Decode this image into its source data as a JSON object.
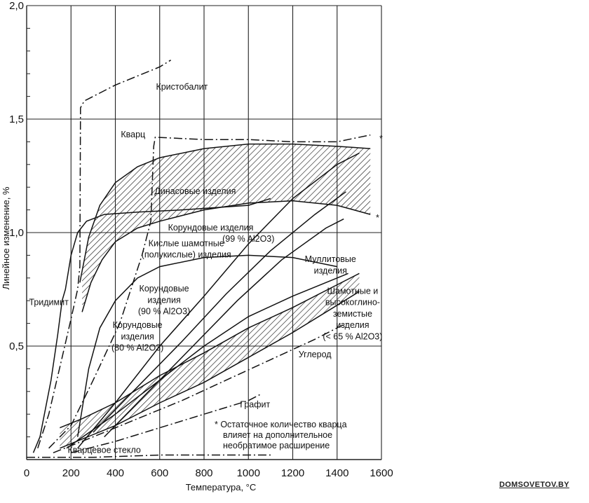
{
  "chart_data": {
    "type": "line",
    "title": "",
    "xlabel": "Температура, °C",
    "ylabel": "Линейное изменение, %",
    "xlim": [
      0,
      1600
    ],
    "ylim": [
      0,
      2.0
    ],
    "x_ticks": [
      "0",
      "200",
      "400",
      "600",
      "800",
      "1000",
      "1200",
      "1400",
      "1600"
    ],
    "y_ticks": [
      "0,5",
      "1,0",
      "1,5",
      "2,0"
    ],
    "grid": true,
    "legend": "none",
    "series": [
      {
        "name": "Кристобалит",
        "style": "dash-dot",
        "points": [
          [
            50,
            0.05
          ],
          [
            100,
            0.2
          ],
          [
            160,
            0.45
          ],
          [
            200,
            0.62
          ],
          [
            230,
            0.75
          ],
          [
            240,
            0.85
          ],
          [
            243,
            1.55
          ],
          [
            260,
            1.58
          ],
          [
            400,
            1.65
          ],
          [
            600,
            1.73
          ],
          [
            650,
            1.76
          ]
        ]
      },
      {
        "name": "Кварц",
        "style": "dash-dot",
        "points": [
          [
            100,
            0.05
          ],
          [
            200,
            0.15
          ],
          [
            300,
            0.35
          ],
          [
            420,
            0.6
          ],
          [
            520,
            0.9
          ],
          [
            560,
            1.05
          ],
          [
            573,
            1.38
          ],
          [
            580,
            1.42
          ],
          [
            800,
            1.41
          ],
          [
            1000,
            1.41
          ],
          [
            1200,
            1.4
          ],
          [
            1400,
            1.4
          ],
          [
            1550,
            1.43
          ]
        ]
      },
      {
        "name": "Тридимит",
        "style": "solid",
        "points": [
          [
            30,
            0.03
          ],
          [
            60,
            0.1
          ],
          [
            110,
            0.35
          ],
          [
            140,
            0.55
          ],
          [
            160,
            0.7
          ],
          [
            175,
            0.75
          ],
          [
            200,
            0.9
          ],
          [
            230,
            1.0
          ],
          [
            270,
            1.05
          ],
          [
            350,
            1.08
          ],
          [
            500,
            1.09
          ],
          [
            700,
            1.1
          ],
          [
            1000,
            1.12
          ],
          [
            1100,
            1.15
          ]
        ]
      },
      {
        "name": "Динасовые изделия (верх)",
        "style": "solid",
        "points": [
          [
            240,
            0.78
          ],
          [
            280,
            0.98
          ],
          [
            330,
            1.12
          ],
          [
            400,
            1.22
          ],
          [
            500,
            1.29
          ],
          [
            600,
            1.33
          ],
          [
            800,
            1.37
          ],
          [
            1000,
            1.39
          ],
          [
            1200,
            1.39
          ],
          [
            1400,
            1.38
          ],
          [
            1550,
            1.37
          ]
        ]
      },
      {
        "name": "Динасовые изделия (низ)",
        "style": "solid",
        "points": [
          [
            250,
            0.65
          ],
          [
            290,
            0.78
          ],
          [
            340,
            0.88
          ],
          [
            400,
            0.96
          ],
          [
            500,
            1.02
          ],
          [
            600,
            1.05
          ],
          [
            800,
            1.1
          ],
          [
            1000,
            1.13
          ],
          [
            1200,
            1.14
          ],
          [
            1400,
            1.12
          ],
          [
            1550,
            1.08
          ]
        ]
      },
      {
        "name": "Корундовые изделия (99 % Al2O3)",
        "style": "solid",
        "points": [
          [
            230,
            0.05
          ],
          [
            400,
            0.25
          ],
          [
            600,
            0.5
          ],
          [
            800,
            0.72
          ],
          [
            1000,
            0.95
          ],
          [
            1200,
            1.15
          ],
          [
            1400,
            1.3
          ],
          [
            1500,
            1.35
          ]
        ]
      },
      {
        "name": "Кислые шамотные (полукислые) изделия",
        "style": "solid",
        "points": [
          [
            230,
            0.1
          ],
          [
            280,
            0.4
          ],
          [
            330,
            0.58
          ],
          [
            400,
            0.7
          ],
          [
            500,
            0.8
          ],
          [
            600,
            0.85
          ],
          [
            800,
            0.89
          ],
          [
            1000,
            0.9
          ],
          [
            1200,
            0.89
          ],
          [
            1400,
            0.85
          ]
        ]
      },
      {
        "name": "Корундовые изделия (90 % Al2O3)",
        "style": "solid",
        "points": [
          [
            300,
            0.12
          ],
          [
            500,
            0.32
          ],
          [
            700,
            0.52
          ],
          [
            900,
            0.73
          ],
          [
            1100,
            0.92
          ],
          [
            1300,
            1.08
          ],
          [
            1440,
            1.18
          ]
        ]
      },
      {
        "name": "Корундовые изделия (80 % Al2O3)",
        "style": "solid",
        "points": [
          [
            350,
            0.1
          ],
          [
            550,
            0.3
          ],
          [
            750,
            0.5
          ],
          [
            950,
            0.7
          ],
          [
            1150,
            0.88
          ],
          [
            1350,
            1.02
          ],
          [
            1430,
            1.06
          ]
        ]
      },
      {
        "name": "Шамотные и высокоглиноземистые изделия (< 65 % Al2O3) (верх)",
        "style": "solid",
        "points": [
          [
            150,
            0.14
          ],
          [
            250,
            0.18
          ],
          [
            400,
            0.25
          ],
          [
            600,
            0.37
          ],
          [
            800,
            0.47
          ],
          [
            1000,
            0.58
          ],
          [
            1200,
            0.67
          ],
          [
            1400,
            0.77
          ],
          [
            1500,
            0.82
          ]
        ]
      },
      {
        "name": "Шамотные и высокоглиноземистые изделия (< 65 % Al2O3) (низ)",
        "style": "solid",
        "points": [
          [
            150,
            0.05
          ],
          [
            250,
            0.09
          ],
          [
            400,
            0.15
          ],
          [
            600,
            0.25
          ],
          [
            800,
            0.34
          ],
          [
            1000,
            0.45
          ],
          [
            1200,
            0.56
          ],
          [
            1400,
            0.68
          ],
          [
            1500,
            0.74
          ]
        ]
      },
      {
        "name": "Муллитовые изделия",
        "style": "solid",
        "points": [
          [
            180,
            0.05
          ],
          [
            400,
            0.2
          ],
          [
            600,
            0.35
          ],
          [
            800,
            0.5
          ],
          [
            1000,
            0.63
          ],
          [
            1200,
            0.72
          ],
          [
            1400,
            0.8
          ],
          [
            1450,
            0.82
          ]
        ]
      },
      {
        "name": "Углерод",
        "style": "dash-dot",
        "points": [
          [
            120,
            0.03
          ],
          [
            300,
            0.1
          ],
          [
            500,
            0.18
          ],
          [
            700,
            0.26
          ],
          [
            900,
            0.35
          ],
          [
            1100,
            0.44
          ],
          [
            1300,
            0.53
          ],
          [
            1440,
            0.6
          ]
        ]
      },
      {
        "name": "Графит",
        "style": "dash-dot",
        "points": [
          [
            200,
            0.03
          ],
          [
            400,
            0.08
          ],
          [
            600,
            0.14
          ],
          [
            800,
            0.2
          ],
          [
            1000,
            0.26
          ],
          [
            1060,
            0.29
          ]
        ]
      },
      {
        "name": "Кварцевое стекло",
        "style": "dash-dot",
        "points": [
          [
            0,
            0.01
          ],
          [
            300,
            0.01
          ],
          [
            600,
            0.02
          ],
          [
            900,
            0.02
          ],
          [
            1100,
            0.02
          ]
        ]
      }
    ],
    "annotations": [
      {
        "text": "Кристобалит",
        "x": 700,
        "y": 1.63
      },
      {
        "text": "Кварц",
        "x": 480,
        "y": 1.42
      },
      {
        "text": "Динасовые изделия",
        "x": 760,
        "y": 1.17
      },
      {
        "text": "Корундовые изделия",
        "x": 830,
        "y": 1.01
      },
      {
        "text": "(99 % Al2O3)",
        "x": 1000,
        "y": 0.96
      },
      {
        "text": "Кислые шамотные",
        "x": 720,
        "y": 0.94
      },
      {
        "text": "(полукислые) изделия",
        "x": 720,
        "y": 0.89
      },
      {
        "text": "Тридимит",
        "x": 100,
        "y": 0.68
      },
      {
        "text": "Корундовые",
        "x": 620,
        "y": 0.74
      },
      {
        "text": "изделия",
        "x": 620,
        "y": 0.69
      },
      {
        "text": "(90 % Al2O3)",
        "x": 620,
        "y": 0.64
      },
      {
        "text": "Корундовые",
        "x": 500,
        "y": 0.58
      },
      {
        "text": "изделия",
        "x": 500,
        "y": 0.53
      },
      {
        "text": "(80 % Al2O3)",
        "x": 500,
        "y": 0.48
      },
      {
        "text": "Муллитовые",
        "x": 1370,
        "y": 0.87
      },
      {
        "text": "изделия",
        "x": 1370,
        "y": 0.82
      },
      {
        "text": "Шамотные и",
        "x": 1470,
        "y": 0.73
      },
      {
        "text": "высокоглино-",
        "x": 1470,
        "y": 0.68
      },
      {
        "text": "земистые",
        "x": 1470,
        "y": 0.63
      },
      {
        "text": "изделия",
        "x": 1470,
        "y": 0.58
      },
      {
        "text": "(< 65 % Al2O3)",
        "x": 1470,
        "y": 0.53
      },
      {
        "text": "Углерод",
        "x": 1300,
        "y": 0.45
      },
      {
        "text": "Графит",
        "x": 1030,
        "y": 0.23
      },
      {
        "text": "Кварцевое стекло",
        "x": 350,
        "y": 0.03
      }
    ],
    "note": [
      "* Остаточное количество кварца",
      "влияет на дополнительное",
      "необратимое расширение"
    ]
  },
  "watermark": "DOMSOVETOV.BY"
}
